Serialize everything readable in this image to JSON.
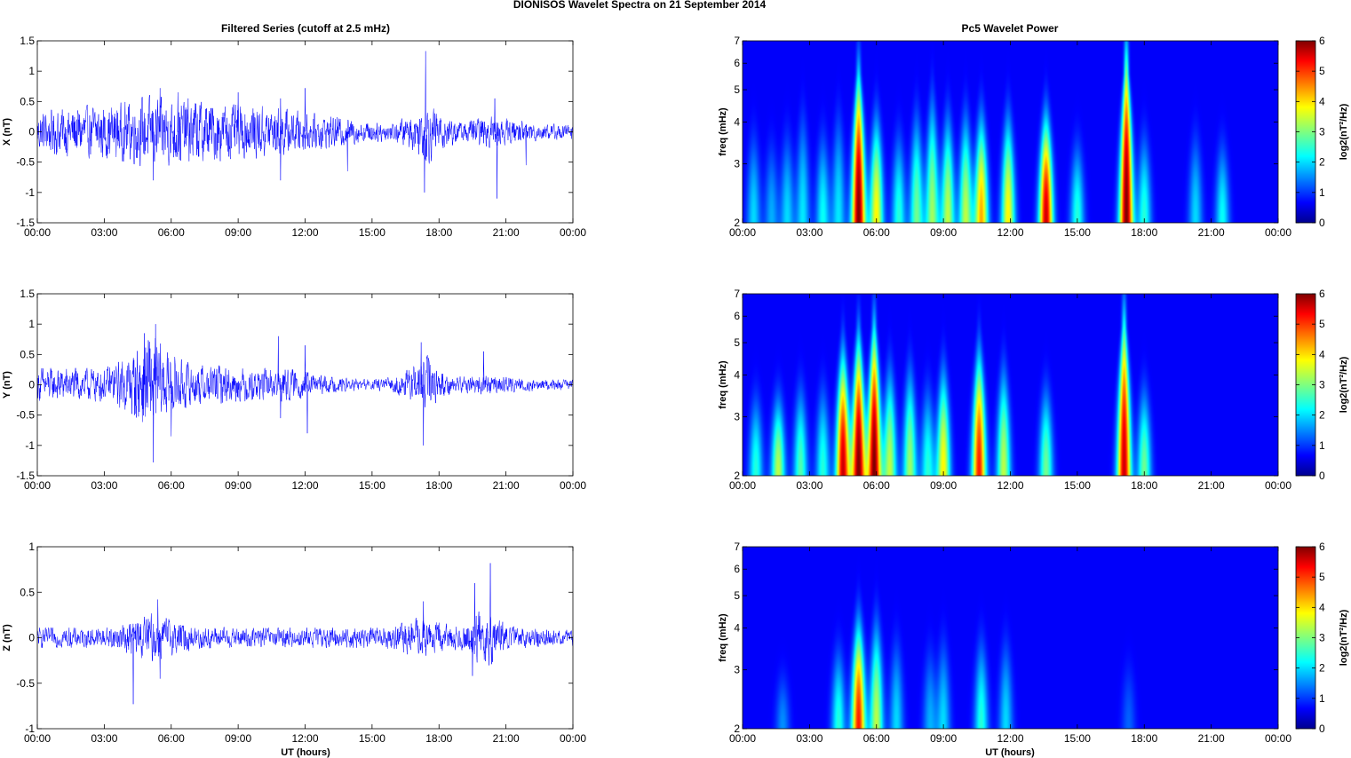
{
  "figure": {
    "title": "DIONISOS Wavelet Spectra on 21 September 2014",
    "left_title": "Filtered Series (cutoff at 2.5 mHz)",
    "right_title": "Pc5 Wavelet Power",
    "xlabel": "UT (hours)"
  },
  "chart_data": [
    {
      "type": "line",
      "component": "X",
      "ylabel": "X (nT)",
      "xlim": [
        0,
        24
      ],
      "ylim": [
        -1.5,
        1.5
      ],
      "xticks": [
        "00:00",
        "03:00",
        "06:00",
        "09:00",
        "12:00",
        "15:00",
        "18:00",
        "21:00",
        "00:00"
      ],
      "yticks": [
        "-1.5",
        "-1",
        "-0.5",
        "0",
        "0.5",
        "1",
        "1.5"
      ],
      "ytick_values": [
        -1.5,
        -1,
        -0.5,
        0,
        0.5,
        1,
        1.5
      ],
      "series_color": "#0000ff",
      "envelope": [
        [
          0,
          0.3
        ],
        [
          1,
          0.35
        ],
        [
          2,
          0.4
        ],
        [
          3,
          0.4
        ],
        [
          4,
          0.45
        ],
        [
          5,
          0.55
        ],
        [
          6,
          0.5
        ],
        [
          7,
          0.5
        ],
        [
          8,
          0.45
        ],
        [
          9,
          0.4
        ],
        [
          10,
          0.4
        ],
        [
          11,
          0.35
        ],
        [
          12,
          0.3
        ],
        [
          13,
          0.25
        ],
        [
          14,
          0.2
        ],
        [
          15,
          0.15
        ],
        [
          16,
          0.15
        ],
        [
          17,
          0.3
        ],
        [
          17.5,
          0.5
        ],
        [
          18,
          0.3
        ],
        [
          19,
          0.15
        ],
        [
          20,
          0.25
        ],
        [
          21,
          0.2
        ],
        [
          22,
          0.15
        ],
        [
          23,
          0.12
        ],
        [
          24,
          0.12
        ]
      ],
      "spikes": [
        [
          5.5,
          0.72
        ],
        [
          5.2,
          -0.8
        ],
        [
          6.3,
          0.65
        ],
        [
          9,
          0.65
        ],
        [
          10.9,
          0.55
        ],
        [
          10.9,
          -0.8
        ],
        [
          12,
          0.72
        ],
        [
          13.9,
          -0.65
        ],
        [
          17.4,
          1.33
        ],
        [
          17.35,
          -1.0
        ],
        [
          20.5,
          0.55
        ],
        [
          20.6,
          -1.1
        ],
        [
          21.9,
          -0.55
        ]
      ]
    },
    {
      "type": "line",
      "component": "Y",
      "ylabel": "Y (nT)",
      "xlim": [
        0,
        24
      ],
      "ylim": [
        -1.5,
        1.5
      ],
      "xticks": [
        "00:00",
        "03:00",
        "06:00",
        "09:00",
        "12:00",
        "15:00",
        "18:00",
        "21:00",
        "00:00"
      ],
      "yticks": [
        "-1.5",
        "-1",
        "-0.5",
        "0",
        "0.5",
        "1",
        "1.5"
      ],
      "ytick_values": [
        -1.5,
        -1,
        -0.5,
        0,
        0.5,
        1,
        1.5
      ],
      "series_color": "#0000ff",
      "envelope": [
        [
          0,
          0.25
        ],
        [
          1,
          0.25
        ],
        [
          2,
          0.25
        ],
        [
          3,
          0.25
        ],
        [
          4,
          0.4
        ],
        [
          5,
          0.8
        ],
        [
          6,
          0.45
        ],
        [
          7,
          0.3
        ],
        [
          8,
          0.3
        ],
        [
          9,
          0.25
        ],
        [
          10,
          0.25
        ],
        [
          11,
          0.25
        ],
        [
          12,
          0.2
        ],
        [
          13,
          0.12
        ],
        [
          14,
          0.1
        ],
        [
          15,
          0.08
        ],
        [
          16,
          0.12
        ],
        [
          17,
          0.3
        ],
        [
          17.5,
          0.45
        ],
        [
          18,
          0.2
        ],
        [
          19,
          0.12
        ],
        [
          20,
          0.15
        ],
        [
          21,
          0.12
        ],
        [
          22,
          0.1
        ],
        [
          23,
          0.08
        ],
        [
          24,
          0.08
        ]
      ],
      "spikes": [
        [
          5.3,
          1.0
        ],
        [
          5.2,
          -1.28
        ],
        [
          4.8,
          0.85
        ],
        [
          6,
          -0.85
        ],
        [
          10.8,
          0.8
        ],
        [
          10.9,
          -0.55
        ],
        [
          12,
          0.65
        ],
        [
          12.1,
          -0.8
        ],
        [
          17.3,
          -1.0
        ],
        [
          17.2,
          0.7
        ],
        [
          20,
          0.55
        ]
      ]
    },
    {
      "type": "line",
      "component": "Z",
      "ylabel": "Z (nT)",
      "xlim": [
        0,
        24
      ],
      "ylim": [
        -1,
        1
      ],
      "xticks": [
        "00:00",
        "03:00",
        "06:00",
        "09:00",
        "12:00",
        "15:00",
        "18:00",
        "21:00",
        "00:00"
      ],
      "yticks": [
        "-1",
        "-0.5",
        "0",
        "0.5",
        "1"
      ],
      "ytick_values": [
        -1,
        -0.5,
        0,
        0.5,
        1
      ],
      "series_color": "#0000ff",
      "envelope": [
        [
          0,
          0.1
        ],
        [
          2,
          0.1
        ],
        [
          3,
          0.1
        ],
        [
          4,
          0.15
        ],
        [
          5,
          0.25
        ],
        [
          6,
          0.18
        ],
        [
          7,
          0.12
        ],
        [
          9,
          0.1
        ],
        [
          12,
          0.1
        ],
        [
          15,
          0.1
        ],
        [
          16,
          0.12
        ],
        [
          17,
          0.2
        ],
        [
          18,
          0.15
        ],
        [
          19,
          0.12
        ],
        [
          20,
          0.3
        ],
        [
          20.5,
          0.25
        ],
        [
          21,
          0.12
        ],
        [
          23,
          0.08
        ],
        [
          24,
          0.08
        ]
      ],
      "spikes": [
        [
          4.3,
          -0.73
        ],
        [
          5.4,
          0.42
        ],
        [
          5.5,
          -0.45
        ],
        [
          17.3,
          0.4
        ],
        [
          19.6,
          0.6
        ],
        [
          20.3,
          0.82
        ],
        [
          19.5,
          -0.42
        ]
      ]
    },
    {
      "type": "heatmap",
      "component": "X",
      "ylabel": "freq (mHz)",
      "colorbar_label": "log2(nT²/Hz)",
      "yscale": "log",
      "xlim": [
        0,
        24
      ],
      "ylim": [
        2,
        7
      ],
      "clim": [
        0,
        6
      ],
      "colormap": "jet",
      "xticks": [
        "00:00",
        "03:00",
        "06:00",
        "09:00",
        "12:00",
        "15:00",
        "18:00",
        "21:00",
        "00:00"
      ],
      "yticks": [
        "2",
        "3",
        "4",
        "5",
        "6",
        "7"
      ],
      "ytick_values": [
        2,
        3,
        4,
        5,
        6,
        7
      ],
      "cticks": [
        "0",
        "1",
        "2",
        "3",
        "4",
        "5",
        "6"
      ],
      "blobs": [
        [
          0.5,
          1.5,
          3
        ],
        [
          1.3,
          1.2,
          2.8
        ],
        [
          2,
          1.5,
          3
        ],
        [
          2.7,
          1.6,
          3.5
        ],
        [
          3.6,
          1.8,
          3
        ],
        [
          4.3,
          1.6,
          3.5
        ],
        [
          5.2,
          6,
          5
        ],
        [
          6,
          3.5,
          3.5
        ],
        [
          7,
          2,
          3
        ],
        [
          7.8,
          2.5,
          3.5
        ],
        [
          8.5,
          2.8,
          4
        ],
        [
          9.2,
          3,
          3.5
        ],
        [
          10,
          3,
          3.5
        ],
        [
          10.7,
          4,
          3.5
        ],
        [
          11.9,
          3.5,
          3.5
        ],
        [
          13.6,
          5.5,
          3.5
        ],
        [
          15,
          2,
          2.8
        ],
        [
          17.2,
          6,
          6
        ],
        [
          18,
          2,
          3
        ],
        [
          20.3,
          1.5,
          3
        ],
        [
          21.5,
          1.8,
          2.8
        ]
      ]
    },
    {
      "type": "heatmap",
      "component": "Y",
      "ylabel": "freq (mHz)",
      "colorbar_label": "log2(nT²/Hz)",
      "yscale": "log",
      "xlim": [
        0,
        24
      ],
      "ylim": [
        2,
        7
      ],
      "clim": [
        0,
        6
      ],
      "colormap": "jet",
      "xticks": [
        "00:00",
        "03:00",
        "06:00",
        "09:00",
        "12:00",
        "15:00",
        "18:00",
        "21:00",
        "00:00"
      ],
      "yticks": [
        "2",
        "3",
        "4",
        "5",
        "6",
        "7"
      ],
      "ytick_values": [
        2,
        3,
        4,
        5,
        6,
        7
      ],
      "cticks": [
        "0",
        "1",
        "2",
        "3",
        "4",
        "5",
        "6"
      ],
      "blobs": [
        [
          0.6,
          2,
          2.8
        ],
        [
          1.6,
          3,
          2.8
        ],
        [
          2.6,
          2.3,
          3
        ],
        [
          3.6,
          2,
          3
        ],
        [
          4.5,
          5.5,
          4
        ],
        [
          5.2,
          6,
          4.5
        ],
        [
          5.9,
          6,
          5
        ],
        [
          6.6,
          3,
          3.5
        ],
        [
          7.5,
          2.8,
          3.5
        ],
        [
          8.3,
          2,
          3
        ],
        [
          9,
          3.5,
          3.5
        ],
        [
          10.6,
          5,
          4
        ],
        [
          11.7,
          3,
          3.5
        ],
        [
          13.6,
          2.5,
          3
        ],
        [
          17.1,
          5.5,
          5.5
        ],
        [
          18,
          2.5,
          3
        ]
      ]
    },
    {
      "type": "heatmap",
      "component": "Z",
      "ylabel": "freq (mHz)",
      "colorbar_label": "log2(nT²/Hz)",
      "yscale": "log",
      "xlim": [
        0,
        24
      ],
      "ylim": [
        2,
        7
      ],
      "clim": [
        0,
        6
      ],
      "colormap": "jet",
      "xticks": [
        "00:00",
        "03:00",
        "06:00",
        "09:00",
        "12:00",
        "15:00",
        "18:00",
        "21:00",
        "00:00"
      ],
      "yticks": [
        "2",
        "3",
        "4",
        "5",
        "6",
        "7"
      ],
      "ytick_values": [
        2,
        3,
        4,
        5,
        6,
        7
      ],
      "cticks": [
        "0",
        "1",
        "2",
        "3",
        "4",
        "5",
        "6"
      ],
      "blobs": [
        [
          1.8,
          1,
          2.3
        ],
        [
          4.3,
          2,
          2.8
        ],
        [
          5.2,
          5,
          3.5
        ],
        [
          6,
          3,
          3.5
        ],
        [
          6.9,
          1.5,
          3
        ],
        [
          8.4,
          1.2,
          2.8
        ],
        [
          9,
          1.5,
          3
        ],
        [
          10.7,
          2,
          3
        ],
        [
          11.8,
          1.5,
          3
        ],
        [
          17.3,
          0.7,
          2.5
        ]
      ]
    }
  ]
}
